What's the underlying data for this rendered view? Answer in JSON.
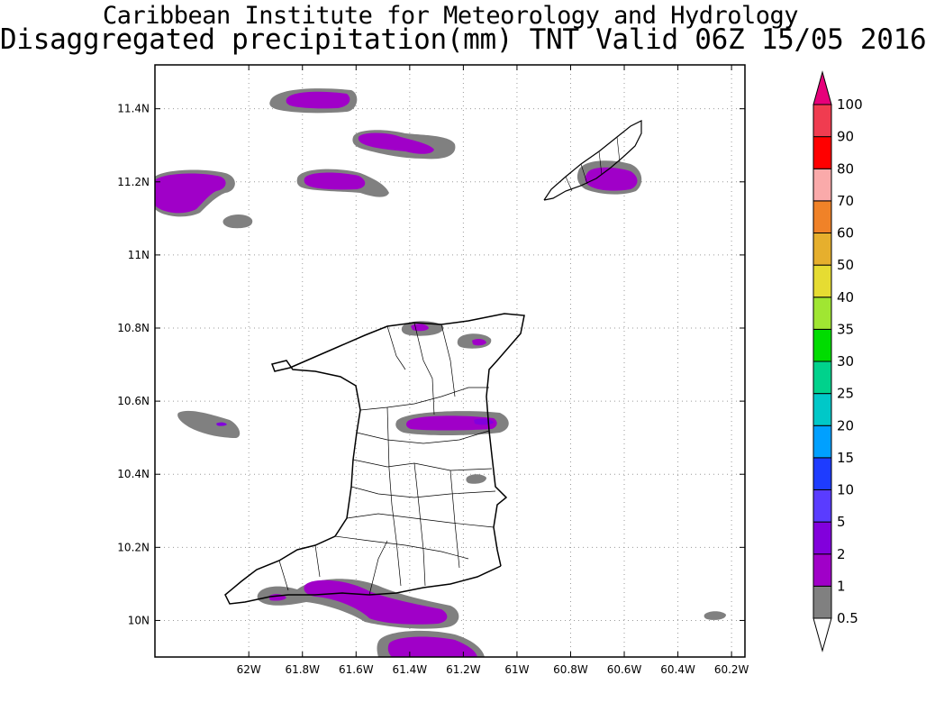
{
  "title_line1": "Caribbean Institute for Meteorology and Hydrology",
  "title_line2": "Disaggregated precipitation(mm) TNT Valid 06Z 15/05 2016",
  "map": {
    "lon_range": [
      -62.35,
      -60.15
    ],
    "lat_range": [
      9.9,
      11.52
    ],
    "x_ticks": [
      {
        "lon": -62.0,
        "label": "62W"
      },
      {
        "lon": -61.8,
        "label": "61.8W"
      },
      {
        "lon": -61.6,
        "label": "61.6W"
      },
      {
        "lon": -61.4,
        "label": "61.4W"
      },
      {
        "lon": -61.2,
        "label": "61.2W"
      },
      {
        "lon": -61.0,
        "label": "61W"
      },
      {
        "lon": -60.8,
        "label": "60.8W"
      },
      {
        "lon": -60.6,
        "label": "60.6W"
      },
      {
        "lon": -60.4,
        "label": "60.4W"
      },
      {
        "lon": -60.2,
        "label": "60.2W"
      }
    ],
    "y_ticks": [
      {
        "lat": 10.0,
        "label": "10N"
      },
      {
        "lat": 10.2,
        "label": "10.2N"
      },
      {
        "lat": 10.4,
        "label": "10.4N"
      },
      {
        "lat": 10.6,
        "label": "10.6N"
      },
      {
        "lat": 10.8,
        "label": "10.8N"
      },
      {
        "lat": 11.0,
        "label": "11N"
      },
      {
        "lat": 11.2,
        "label": "11.2N"
      },
      {
        "lat": 11.4,
        "label": "11.4N"
      }
    ],
    "grid": true,
    "colorbar": {
      "levels": [
        "0.5",
        "1",
        "2",
        "5",
        "10",
        "15",
        "20",
        "25",
        "30",
        "35",
        "40",
        "50",
        "60",
        "70",
        "80",
        "90",
        "100"
      ],
      "colors": [
        "#ffffff",
        "#808080",
        "#a000c8",
        "#8200dc",
        "#5a3cff",
        "#1e3cff",
        "#00a0ff",
        "#00c8c8",
        "#00d28c",
        "#00dc00",
        "#a0e632",
        "#e6dc32",
        "#e6af2d",
        "#f08228",
        "#faaaaa",
        "#ff0000",
        "#f03c50",
        "#e6007a"
      ]
    }
  }
}
